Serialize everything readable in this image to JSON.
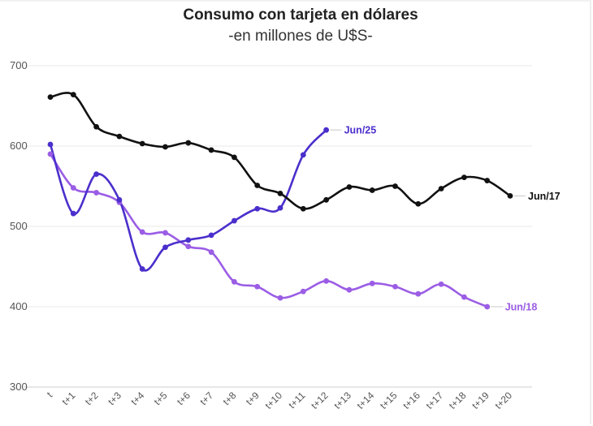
{
  "chart_data": {
    "type": "line",
    "title": "Consumo con tarjeta en dólares",
    "subtitle": "-en millones de U$S-",
    "xlabel": "",
    "ylabel": "",
    "ylim": [
      300,
      700
    ],
    "yticks": [
      300,
      400,
      500,
      600,
      700
    ],
    "grid": "horizontal",
    "categories": [
      "t",
      "t+1",
      "t+2",
      "t+3",
      "t+4",
      "t+5",
      "t+6",
      "t+7",
      "t+8",
      "t+9",
      "t+10",
      "t+11",
      "t+12",
      "t+13",
      "t+14",
      "t+15",
      "t+16",
      "t+17",
      "t+18",
      "t+19",
      "t+20"
    ],
    "series": [
      {
        "name": "Jun/17",
        "color": "#111111",
        "values": [
          661,
          664,
          624,
          612,
          603,
          599,
          604,
          595,
          586,
          551,
          541,
          522,
          533,
          549,
          545,
          550,
          528,
          547,
          561,
          557,
          538
        ]
      },
      {
        "name": "Jun/25",
        "color": "#4b2fcc",
        "values": [
          602,
          516,
          565,
          533,
          447,
          474,
          483,
          489,
          507,
          522,
          523,
          589,
          620,
          null,
          null,
          null,
          null,
          null,
          null,
          null,
          null
        ]
      },
      {
        "name": "Jun/18",
        "color": "#9b5de5",
        "values": [
          590,
          548,
          542,
          530,
          493,
          492,
          475,
          468,
          431,
          425,
          411,
          419,
          432,
          421,
          429,
          425,
          416,
          428,
          412,
          400,
          null
        ]
      }
    ]
  }
}
